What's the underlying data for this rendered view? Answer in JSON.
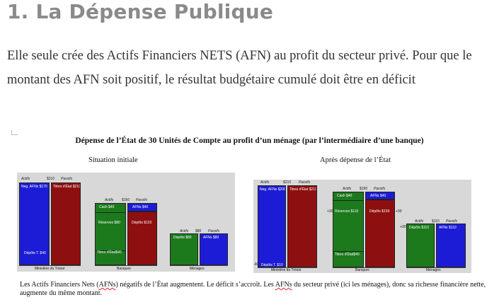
{
  "heading": "1. La Dépense Publique",
  "intro": "Elle seule crée des Actifs Financiers NETS (AFN) au profit du secteur privé. Pour que le montant des AFN soit positif, le résultat budgétaire cumulé doit être en déficit",
  "figure": {
    "title": "Dépense de l’État de 30 Unités de Compte au profit d’un ménage (par l’intermédiaire d’une banque)",
    "left_title": "Situation initiale",
    "right_title": "Après dépense de l’État",
    "col_headers": {
      "assets": "Actifs",
      "liabilities": "Passifs"
    },
    "left": {
      "treasury": {
        "label": "Ministère du Trésor",
        "total": "$210",
        "assets_top": "Neg. AFNs $170",
        "assets_bottom": "Dépôts T. $40",
        "liab": "Titres d'État $210"
      },
      "banks": {
        "label": "Banques",
        "total": "$160",
        "cash": "Cash $40",
        "reserves": "Réserves $80",
        "titles": "Titres d'État$40",
        "afn": "AFNs $40",
        "deposits": "Dépôts $120"
      },
      "households": {
        "label": "Ménages",
        "total": "$80",
        "deposits": "Dépôts $80",
        "afn": "AFNs $80"
      }
    },
    "right": {
      "treasury": {
        "label": "Ministère du Trésor",
        "total": "$210",
        "assets_top": "Neg. AFNs $200",
        "assets_bottom": "Dépôts T. $10",
        "liab": "Titres d'État $210",
        "delta": "-30"
      },
      "banks": {
        "label": "Banques",
        "total": "$190",
        "cash": "Cash $40",
        "reserves": "Réserves $110",
        "titles": "Titres d'État$40",
        "afn": "AFNs $40",
        "deposits": "Dépôts $150",
        "delta_left": "+30",
        "delta_right": "+30"
      },
      "households": {
        "label": "Ménages",
        "total": "$110",
        "deposits": "Dépôts $110",
        "afn": "AFNs $110",
        "delta": "+30"
      }
    },
    "caption": {
      "p1": "Les Actifs Financiers Nets (",
      "afns": "AFNs",
      "p2": ") négatifs de l’État augmentent. Le déficit s’accroît. Les ",
      "afn": "AFNs",
      "p3": " du secteur privé (ici les ménages), donc sa richesse financière nette, augmente du même montant."
    }
  },
  "colors": {
    "heading": "#8a8a8a",
    "asset_blue": "#1c1cd6",
    "liability_red": "#8e0f10",
    "reserves_green": "#1c7a1c",
    "panel": "#d8d8d8"
  }
}
